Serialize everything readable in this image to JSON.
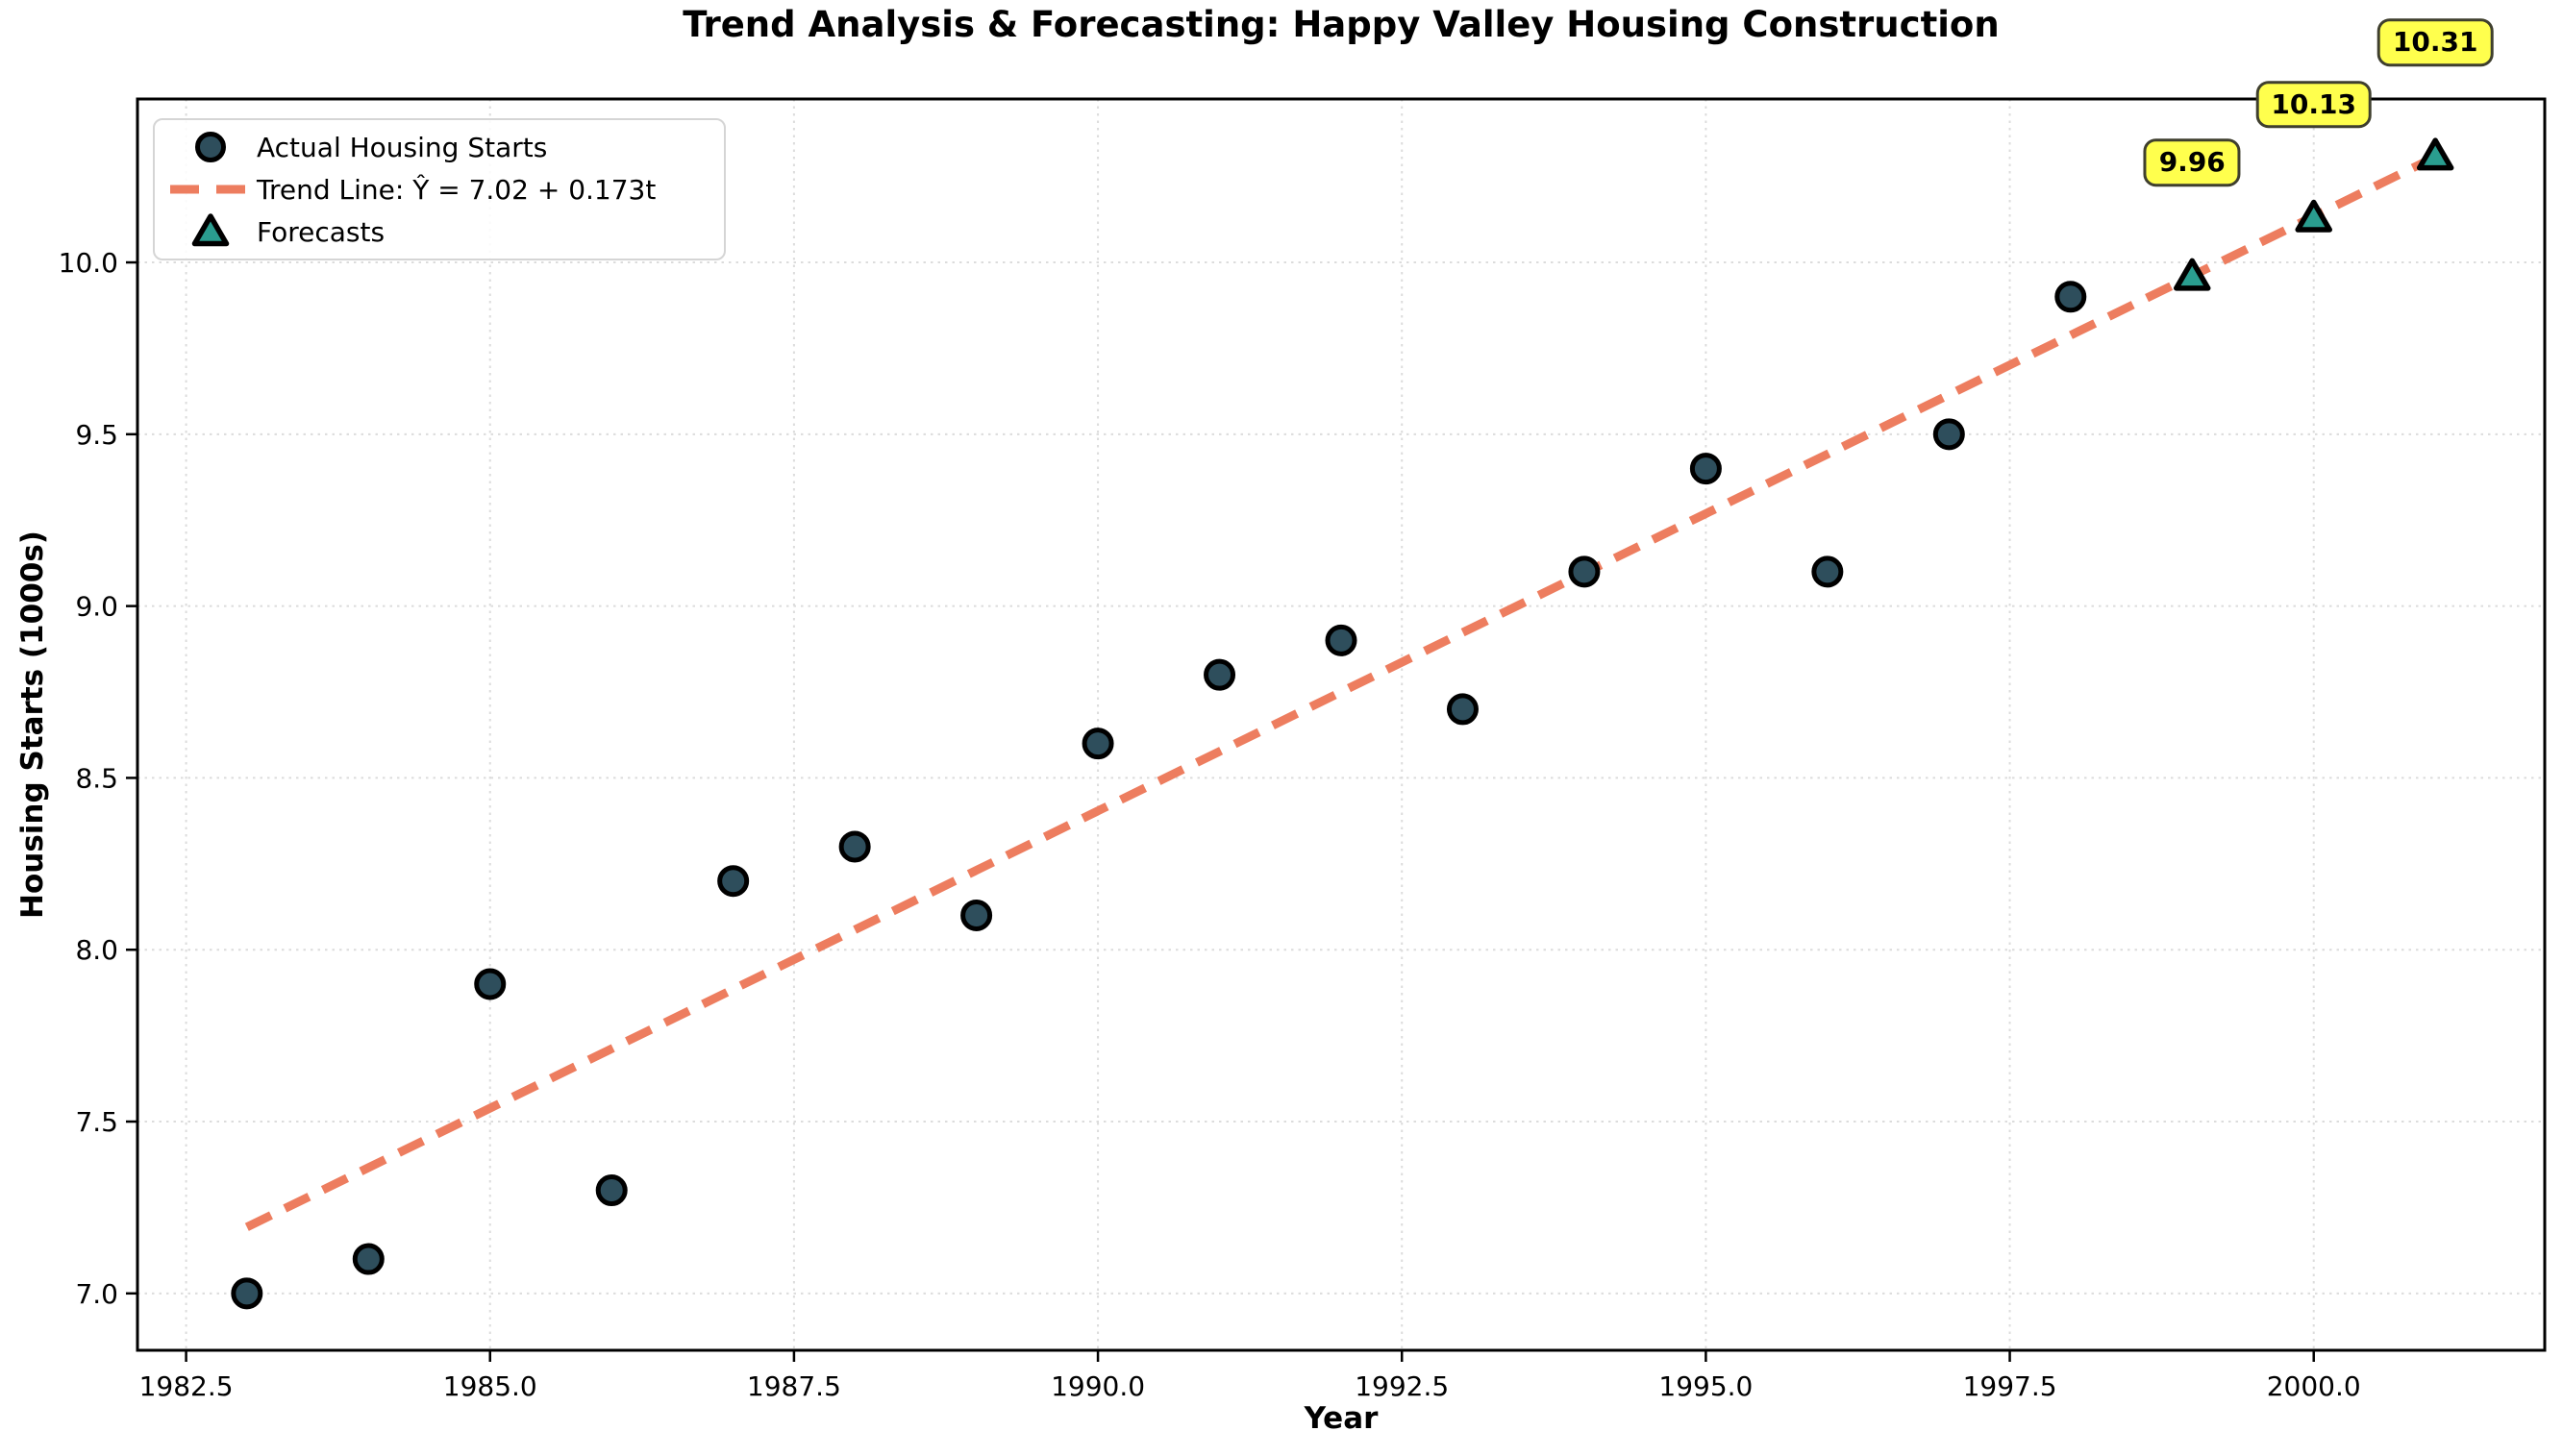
{
  "chart_data": {
    "type": "scatter",
    "title": "Trend Analysis & Forecasting: Happy Valley Housing Construction",
    "xlabel": "Year",
    "ylabel": "Housing Starts (1000s)",
    "xlim": [
      1982.1,
      2001.9
    ],
    "ylim": [
      6.8345,
      10.4755
    ],
    "x_ticks": [
      1982.5,
      1985.0,
      1987.5,
      1990.0,
      1992.5,
      1995.0,
      1997.5,
      2000.0
    ],
    "x_tick_labels": [
      "1982.5",
      "1985.0",
      "1987.5",
      "1990.0",
      "1992.5",
      "1995.0",
      "1997.5",
      "2000.0"
    ],
    "y_ticks": [
      7.0,
      7.5,
      8.0,
      8.5,
      9.0,
      9.5,
      10.0
    ],
    "y_tick_labels": [
      "7.0",
      "7.5",
      "8.0",
      "8.5",
      "9.0",
      "9.5",
      "10.0"
    ],
    "grid": true,
    "legend_position": "upper left",
    "series": [
      {
        "name": "Actual Housing Starts",
        "type": "scatter",
        "marker": "circle",
        "x": [
          1983,
          1984,
          1985,
          1986,
          1987,
          1988,
          1989,
          1990,
          1991,
          1992,
          1993,
          1994,
          1995,
          1996,
          1997,
          1998
        ],
        "y": [
          7.0,
          7.1,
          7.9,
          7.3,
          8.2,
          8.3,
          8.1,
          8.6,
          8.8,
          8.9,
          8.7,
          9.1,
          9.4,
          9.1,
          9.5,
          9.9
        ]
      },
      {
        "name": "Trend Line: Ŷ = 7.02 + 0.173t",
        "type": "line",
        "style": "dashed",
        "equation": {
          "intercept": 7.02,
          "slope": 0.173,
          "t_origin_year": 1982
        },
        "x_start": 1983,
        "x_end": 2001
      },
      {
        "name": "Forecasts",
        "type": "scatter",
        "marker": "triangle",
        "x": [
          1999,
          2000,
          2001
        ],
        "y": [
          9.96,
          10.13,
          10.31
        ],
        "labels": [
          "9.96",
          "10.13",
          "10.31"
        ]
      }
    ],
    "colors": {
      "actual_fill": "#2e4e5c",
      "marker_edge": "#000000",
      "trend": "#ed7d5f",
      "forecast_fill": "#2a9d8f",
      "annotation_bg": "#ffff4d",
      "annotation_border": "#3f3f2e",
      "grid": "#dcdcdc",
      "spine": "#000000"
    }
  }
}
